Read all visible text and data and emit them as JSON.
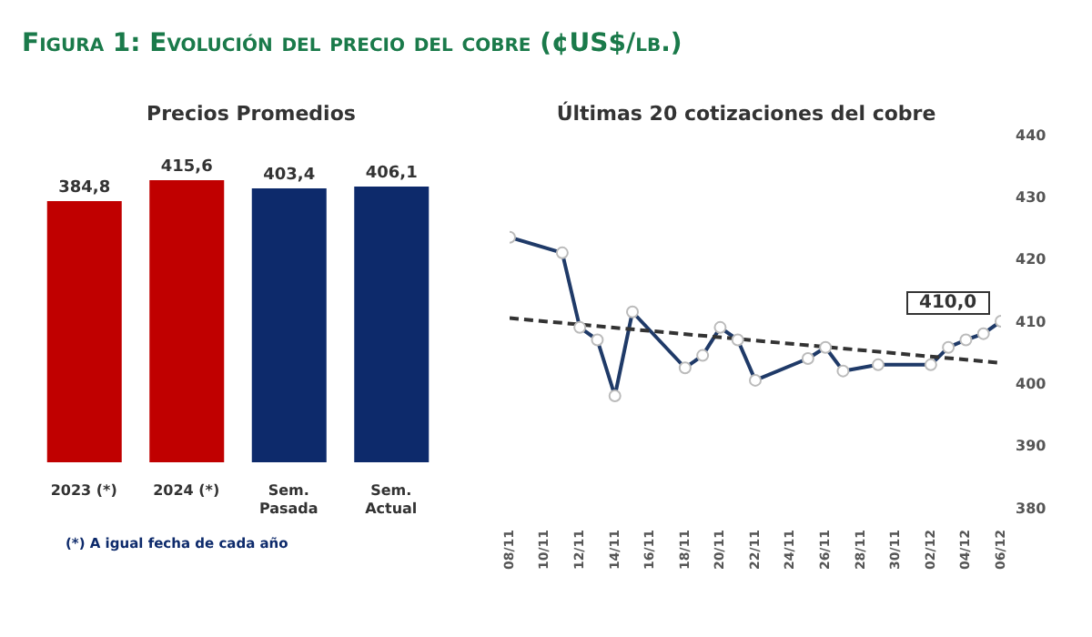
{
  "chart_data": [
    {
      "type": "bar",
      "title": "Figura 1: Evolución del precio del cobre (¢US$/lb.)",
      "subtitle": "Precios Promedios",
      "categories": [
        "2023 (*)",
        "2024 (*)",
        "Sem. Pasada",
        "Sem. Actual"
      ],
      "values": [
        384.8,
        415.6,
        403.4,
        406.1
      ],
      "colors": [
        "#c00000",
        "#c00000",
        "#0d2a6b",
        "#0d2a6b"
      ],
      "value_labels": [
        "384,8",
        "415,6",
        "403,4",
        "406,1"
      ],
      "tick_labels": "x",
      "grid": false,
      "legend": false,
      "annotations": [
        "(*) A igual fecha de cada año"
      ]
    },
    {
      "type": "line",
      "title": "Últimas 20 cotizaciones del cobre",
      "x": [
        "--11-08",
        "--11-11",
        "--11-12",
        "--11-13",
        "--11-14",
        "--11-15",
        "--11-18",
        "--11-19",
        "--11-20",
        "--11-21",
        "--11-22",
        "--11-25",
        "--11-26",
        "--11-27",
        "--11-29",
        "--12-02",
        "--12-03",
        "--12-04",
        "--12-05",
        "--12-06"
      ],
      "series": [
        {
          "color": "#1f3a68",
          "values": [
            423.5,
            421,
            409,
            407,
            398,
            411.5,
            402.5,
            404.5,
            409,
            407,
            400.5,
            404,
            405.8,
            402,
            403,
            403,
            405.8,
            407,
            408,
            410
          ]
        },
        {
          "type": "line",
          "color": "#333333",
          "x": [
            "--11-08",
            "--12-06"
          ],
          "values": [
            410.5,
            403.3
          ],
          "line_style": "dashed",
          "marker": "none"
        }
      ],
      "marker": "circle",
      "line_style": "solid",
      "xlim": [
        "--11-08",
        "--12-06"
      ],
      "xticks": [
        {
          "value": "--11-08",
          "label": "08/11"
        },
        {
          "value": "--11-10",
          "label": "10/11"
        },
        {
          "value": "--11-12",
          "label": "12/11"
        },
        {
          "value": "--11-14",
          "label": "14/11"
        },
        {
          "value": "--11-16",
          "label": "16/11"
        },
        {
          "value": "--11-18",
          "label": "18/11"
        },
        {
          "value": "--11-20",
          "label": "20/11"
        },
        {
          "value": "--11-22",
          "label": "22/11"
        },
        {
          "value": "--11-24",
          "label": "24/11"
        },
        {
          "value": "--11-26",
          "label": "26/11"
        },
        {
          "value": "--11-28",
          "label": "28/11"
        },
        {
          "value": "--11-30",
          "label": "30/11"
        },
        {
          "value": "--12-02",
          "label": "02/12"
        },
        {
          "value": "--12-04",
          "label": "04/12"
        },
        {
          "value": "--12-06",
          "label": "06/12"
        }
      ],
      "ylim": [
        380,
        440
      ],
      "yticks": [
        380,
        390,
        400,
        410,
        420,
        430,
        440
      ],
      "grid": false,
      "legend": false,
      "annotations": [
        "410,0"
      ]
    }
  ]
}
